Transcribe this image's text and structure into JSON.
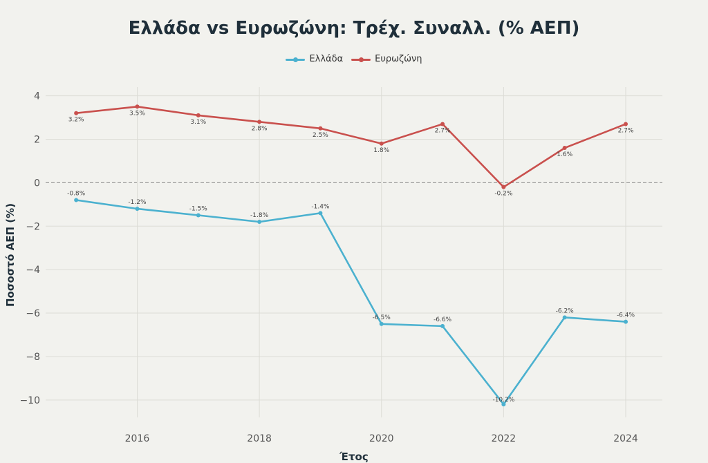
{
  "chart_data": {
    "type": "line",
    "title": "Ελλάδα vs Ευρωζώνη: Τρέχ. Συναλλ. (% ΑΕΠ)",
    "xlabel": "Έτος",
    "ylabel": "Ποσοστό ΑΕΠ (%)",
    "x": [
      2015,
      2016,
      2017,
      2018,
      2019,
      2020,
      2021,
      2022,
      2023,
      2024
    ],
    "xticks": [
      "2016",
      "2018",
      "2020",
      "2022",
      "2024"
    ],
    "yticks": [
      "4",
      "2",
      "0",
      "−2",
      "−4",
      "−6",
      "−8",
      "−10"
    ],
    "xlim": [
      2014.5,
      2024.6
    ],
    "ylim": [
      -10.8,
      4.4
    ],
    "grid": true,
    "legend_position": "top-center",
    "series": [
      {
        "name": "Ελλάδα",
        "color": "#4bb1cf",
        "values": [
          -0.8,
          -1.2,
          -1.5,
          -1.8,
          -1.4,
          -6.5,
          -6.6,
          -10.2,
          -6.2,
          -6.4
        ],
        "labels": [
          "-0.8%",
          "-1.2%",
          "-1.5%",
          "-1.8%",
          "-1.4%",
          "-6.5%",
          "-6.6%",
          "-10.2%",
          "-6.2%",
          "-6.4%"
        ]
      },
      {
        "name": "Ευρωζώνη",
        "color": "#c9504d",
        "values": [
          3.2,
          3.5,
          3.1,
          2.8,
          2.5,
          1.8,
          2.7,
          -0.2,
          1.6,
          2.7
        ],
        "labels": [
          "3.2%",
          "3.5%",
          "3.1%",
          "2.8%",
          "2.5%",
          "1.8%",
          "2.7%",
          "-0.2%",
          "1.6%",
          "2.7%"
        ]
      }
    ]
  }
}
